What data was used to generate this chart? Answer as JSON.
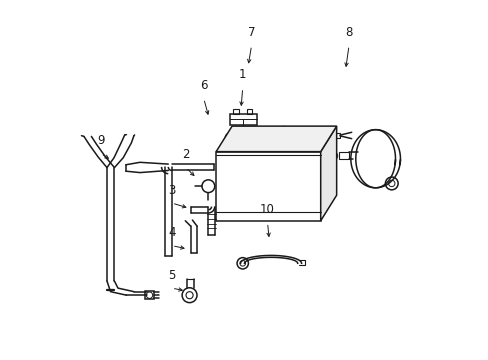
{
  "background_color": "#ffffff",
  "line_color": "#1a1a1a",
  "figsize": [
    4.89,
    3.6
  ],
  "dpi": 100,
  "label_fontsize": 8.5,
  "labels": {
    "1": [
      0.495,
      0.76,
      0.49,
      0.7
    ],
    "2": [
      0.335,
      0.535,
      0.365,
      0.505
    ],
    "3": [
      0.295,
      0.435,
      0.345,
      0.42
    ],
    "4": [
      0.295,
      0.315,
      0.34,
      0.305
    ],
    "5": [
      0.295,
      0.195,
      0.335,
      0.187
    ],
    "6": [
      0.385,
      0.73,
      0.4,
      0.675
    ],
    "7": [
      0.52,
      0.88,
      0.51,
      0.82
    ],
    "8": [
      0.795,
      0.88,
      0.785,
      0.81
    ],
    "9": [
      0.095,
      0.575,
      0.125,
      0.555
    ],
    "10": [
      0.565,
      0.38,
      0.57,
      0.33
    ]
  }
}
